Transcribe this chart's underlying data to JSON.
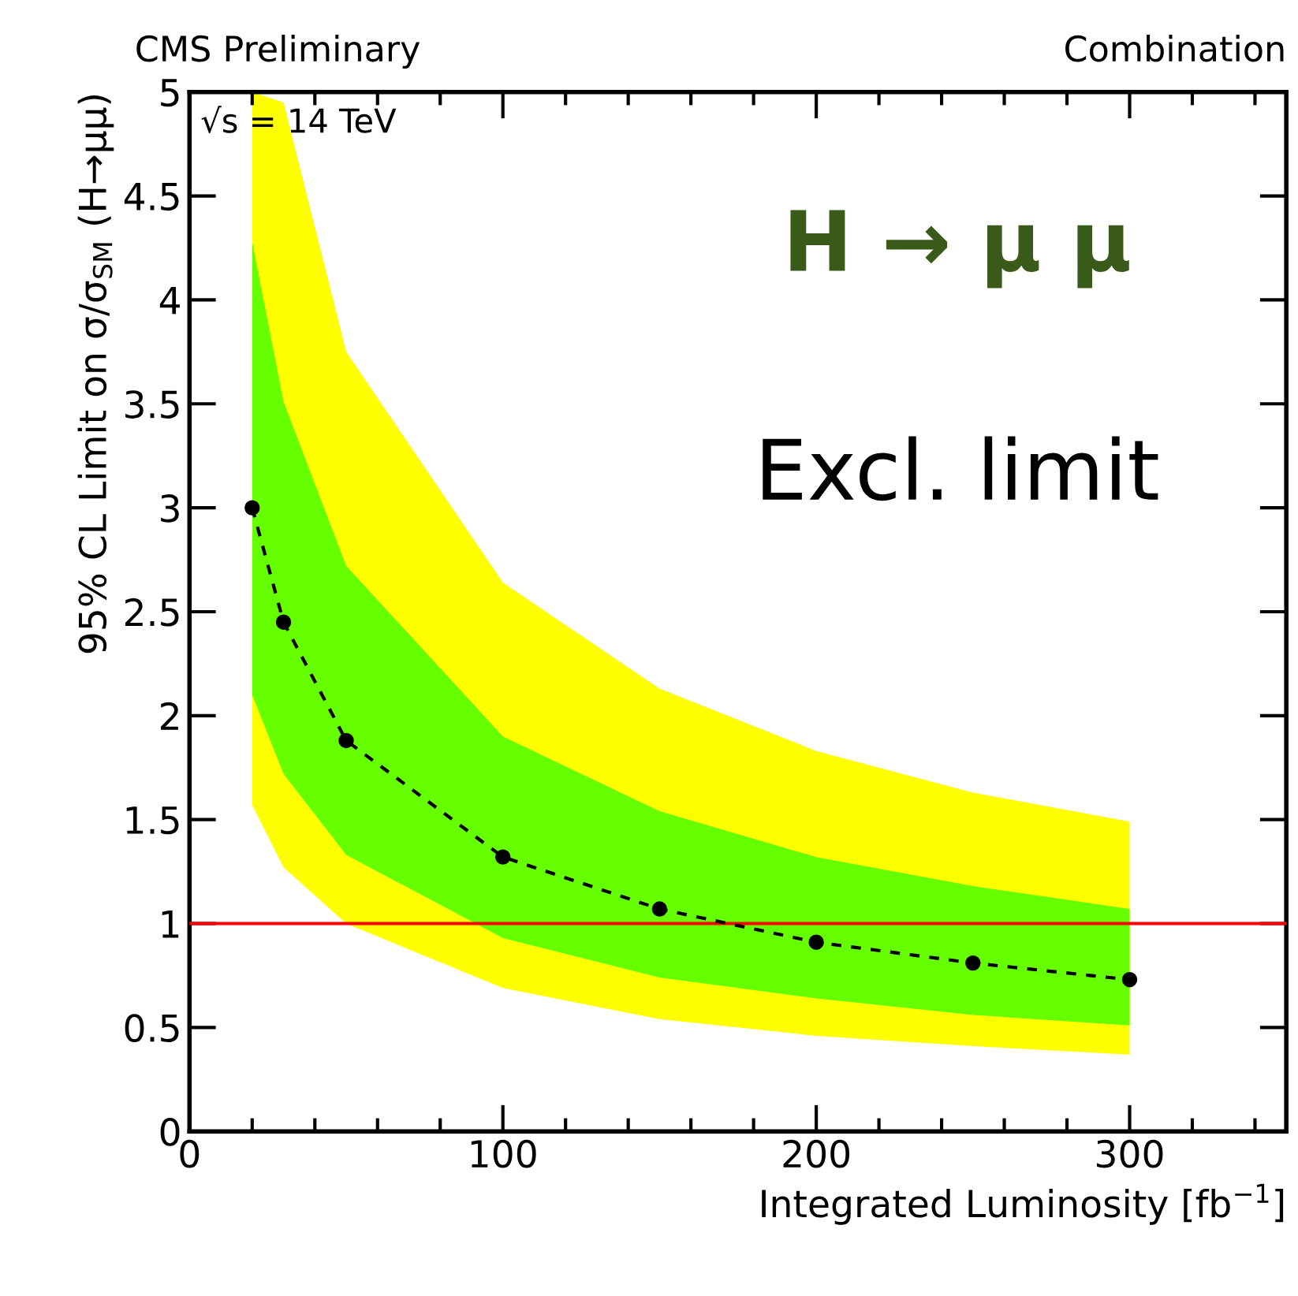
{
  "chart_data": {
    "type": "line",
    "title": "CMS Preliminary",
    "subtitle": "Combination",
    "xlabel": "Integrated Luminosity [fb$^{−1}$]",
    "ylabel": "95% CL Limit on σ/σ$_{SM}$ (H→μμ)",
    "annotations": [
      "√s = 14 TeV",
      "H → μ μ",
      "Excl. limit"
    ],
    "x": [
      20,
      30,
      50,
      100,
      150,
      200,
      250,
      300
    ],
    "series": [
      {
        "values": [
          null,
          null,
          null,
          null,
          null,
          null,
          null,
          null
        ],
        "lower": [
          1.57,
          1.27,
          1.0,
          0.69,
          0.54,
          0.46,
          0.41,
          0.37
        ],
        "upper": [
          5.0,
          4.95,
          3.75,
          2.64,
          2.13,
          1.83,
          1.63,
          1.49
        ]
      },
      {
        "color": "#000000",
        "values": [
          3.0,
          2.45,
          1.88,
          1.32,
          1.07,
          0.91,
          0.81,
          0.73
        ],
        "lower": [
          2.1,
          1.72,
          1.33,
          0.93,
          0.74,
          0.64,
          0.56,
          0.51
        ],
        "upper": [
          4.28,
          3.51,
          2.72,
          1.9,
          1.54,
          1.32,
          1.18,
          1.07
        ],
        "marker": "circle",
        "line_style": "dashed"
      }
    ],
    "colors": [
      "#ffff00",
      "#66ff00"
    ],
    "ref_lines": [
      {
        "axis": "y",
        "value": 1,
        "color": "#ff0000"
      }
    ],
    "xlim": [
      0,
      350
    ],
    "ylim": [
      0,
      5
    ],
    "xticks": [
      0,
      100,
      200,
      300
    ],
    "yticks": [
      0,
      0.5,
      1,
      1.5,
      2,
      2.5,
      3,
      3.5,
      4,
      4.5,
      5
    ],
    "grid": false,
    "legend": false
  }
}
